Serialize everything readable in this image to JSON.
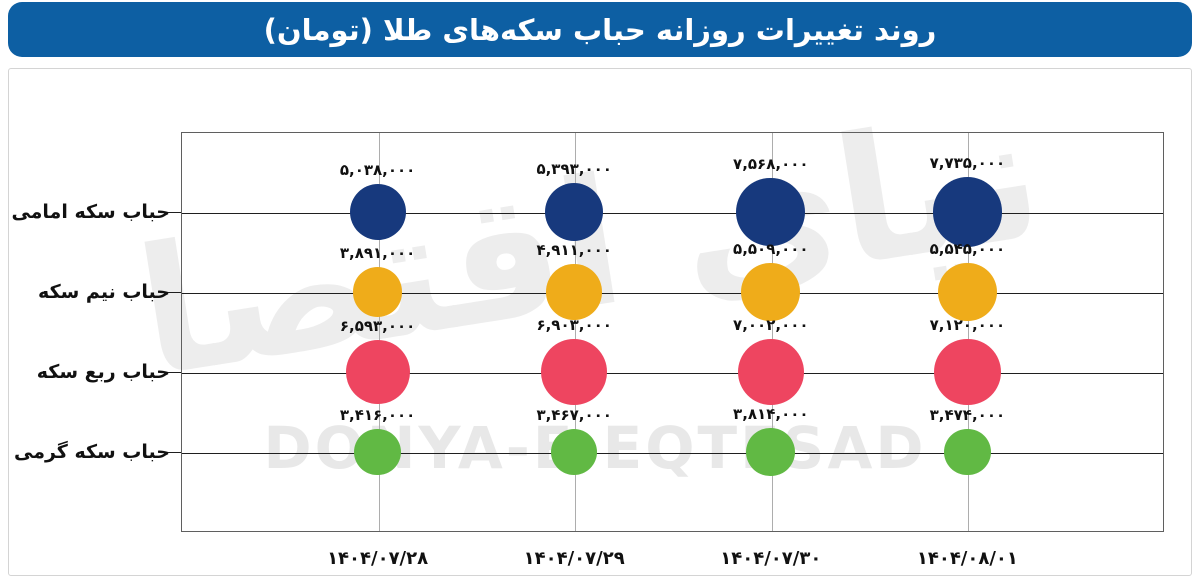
{
  "title": "روند تغییرات روزانه حباب سکه‌های طلا (تومان)",
  "watermarks": {
    "persian": "دنیای اقتصاد",
    "latin": "DONYA-E-EQTESAD"
  },
  "colors": {
    "title_bar": "#0d5fa3",
    "emami": "#17397d",
    "nim": "#efac1a",
    "rob": "#ee4560",
    "gerami": "#61b944",
    "grid_h": "#1f1f1f",
    "grid_v": "#adadad",
    "watermark": "#e9e9e9"
  },
  "chart_data": {
    "type": "scatter",
    "subtype": "bubble-grid",
    "title": "روند تغییرات روزانه حباب سکه‌های طلا (تومان)",
    "unit": "توم ان",
    "grid": true,
    "legend": "none",
    "bubble_size_rule": "diameter proportional to sqrt(value)",
    "x_categories": [
      "۱۴۰۴/۰۷/۲۸",
      "۱۴۰۴/۰۷/۲۹",
      "۱۴۰۴/۰۷/۳۰",
      "۱۴۰۴/۰۸/۰۱"
    ],
    "x_categories_ascii": [
      "1404/07/28",
      "1404/07/29",
      "1404/07/30",
      "1404/08/01"
    ],
    "y_categories": [
      "حباب سکه امامی",
      "حباب نیم سکه",
      "حباب ربع سکه",
      "حباب سکه گرمی"
    ],
    "series": [
      {
        "name": "حباب سکه امامی",
        "color": "#17397d",
        "values": [
          5038000,
          5393000,
          7568000,
          7735000
        ],
        "labels": [
          "۵,۰۳۸,۰۰۰",
          "۵,۳۹۳,۰۰۰",
          "۷,۵۶۸,۰۰۰",
          "۷,۷۳۵,۰۰۰"
        ]
      },
      {
        "name": "حباب نیم سکه",
        "color": "#efac1a",
        "values": [
          3891000,
          4911000,
          5509000,
          5545000
        ],
        "labels": [
          "۳,۸۹۱,۰۰۰",
          "۴,۹۱۱,۰۰۰",
          "۵,۵۰۹,۰۰۰",
          "۵,۵۴۵,۰۰۰"
        ]
      },
      {
        "name": "حباب ربع سکه",
        "color": "#ee4560",
        "values": [
          6593000,
          6903000,
          7002000,
          7120000
        ],
        "labels": [
          "۶,۵۹۳,۰۰۰",
          "۶,۹۰۳,۰۰۰",
          "۷,۰۰۲,۰۰۰",
          "۷,۱۲۰,۰۰۰"
        ]
      },
      {
        "name": "حباب سکه گرمی",
        "color": "#61b944",
        "values": [
          3416000,
          3467000,
          3814000,
          3474000
        ],
        "labels": [
          "۳,۴۱۶,۰۰۰",
          "۳,۴۶۷,۰۰۰",
          "۳,۸۱۴,۰۰۰",
          "۳,۴۷۴,۰۰۰"
        ]
      }
    ]
  }
}
